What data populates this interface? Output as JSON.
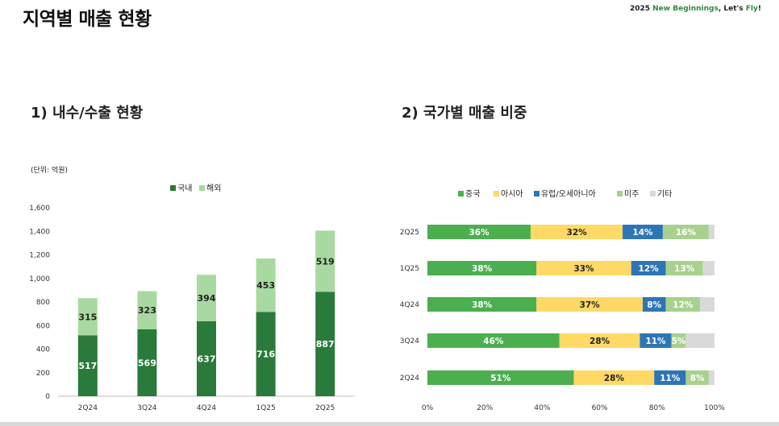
{
  "page": {
    "title": "지역별 매출 현황",
    "slogan_prefix": "2025 ",
    "slogan_accent1": "New Beginnings",
    "slogan_mid": ", Let's ",
    "slogan_accent2": "Fly",
    "slogan_suffix": "!"
  },
  "sections": {
    "left_title": "1) 내수/수출 현황",
    "right_title": "2) 국가별 매출 비중",
    "unit_note": "(단위: 억원)"
  },
  "colors": {
    "domestic": "#2a7a3b",
    "overseas": "#a8d9a0",
    "china": "#4caf4f",
    "asia": "#ffd966",
    "europe_oceania": "#2e75b6",
    "americas": "#a9d18e",
    "other": "#d9d9d9"
  },
  "chart_data": [
    {
      "type": "bar",
      "stacked": true,
      "categories": [
        "2Q24",
        "3Q24",
        "4Q24",
        "1Q25",
        "2Q25"
      ],
      "series": [
        {
          "name": "국내",
          "values": [
            517,
            569,
            637,
            716,
            887
          ]
        },
        {
          "name": "해외",
          "values": [
            315,
            323,
            394,
            453,
            519
          ]
        }
      ],
      "ylim": [
        0,
        1600
      ],
      "yticks": [
        "0",
        "200",
        "400",
        "600",
        "800",
        "1,000",
        "1,200",
        "1,400",
        "1,600"
      ],
      "legend": "top-center",
      "grid": false
    },
    {
      "type": "bar",
      "orientation": "horizontal",
      "stacked": true,
      "categories": [
        "2Q25",
        "1Q25",
        "4Q24",
        "3Q24",
        "2Q24"
      ],
      "series": [
        {
          "name": "중국",
          "values": [
            36,
            38,
            38,
            46,
            51
          ],
          "labels": [
            "36%",
            "38%",
            "38%",
            "46%",
            "51%"
          ]
        },
        {
          "name": "아시아",
          "values": [
            32,
            33,
            37,
            28,
            28
          ],
          "labels": [
            "32%",
            "33%",
            "37%",
            "28%",
            "28%"
          ]
        },
        {
          "name": "유럽/오세아니아",
          "values": [
            14,
            12,
            8,
            11,
            11
          ],
          "labels": [
            "14%",
            "12%",
            "8%",
            "11%",
            "11%"
          ]
        },
        {
          "name": "미주",
          "values": [
            16,
            13,
            12,
            5,
            8
          ],
          "labels": [
            "16%",
            "13%",
            "12%",
            "5%",
            "8%"
          ]
        },
        {
          "name": "기타",
          "values": [
            2,
            4,
            5,
            10,
            2
          ],
          "labels": [
            "",
            "",
            "",
            "",
            ""
          ]
        }
      ],
      "xlim": [
        0,
        100
      ],
      "xticks": [
        "0%",
        "20%",
        "40%",
        "60%",
        "80%",
        "100%"
      ],
      "legend": "top-center",
      "grid": false
    }
  ]
}
